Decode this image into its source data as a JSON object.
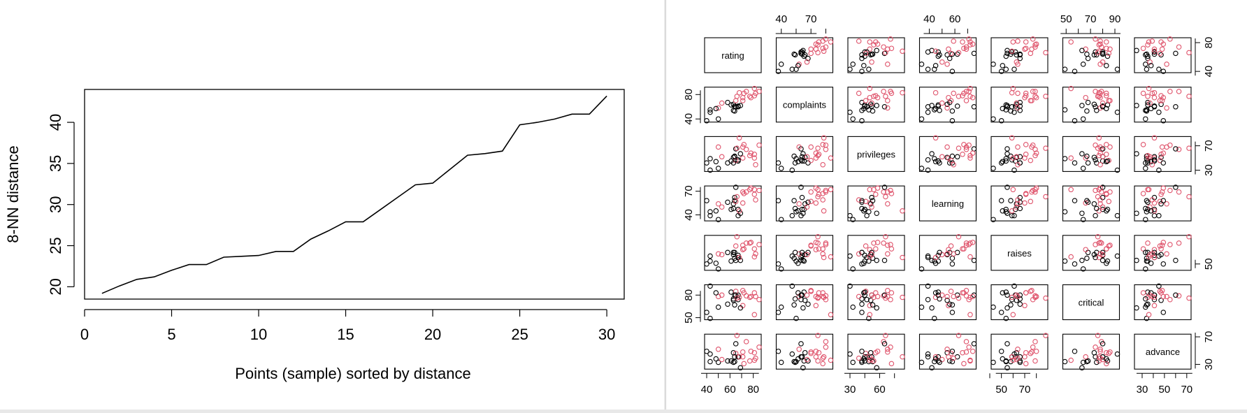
{
  "chart_data": [
    {
      "type": "line",
      "title": "",
      "xlabel": "Points (sample) sorted by distance",
      "ylabel": "8-NN distance",
      "xlim": [
        0,
        31
      ],
      "ylim": [
        18.5,
        44
      ],
      "xticks": [
        0,
        5,
        10,
        15,
        20,
        25,
        30
      ],
      "yticks": [
        20,
        25,
        30,
        35,
        40
      ],
      "grid": false,
      "x": [
        1,
        2,
        3,
        4,
        5,
        6,
        7,
        8,
        9,
        10,
        11,
        12,
        13,
        14,
        15,
        16,
        17,
        18,
        19,
        20,
        21,
        22,
        23,
        24,
        25,
        26,
        27,
        28,
        29,
        30
      ],
      "y": [
        19.2,
        20.1,
        20.9,
        21.2,
        22.0,
        22.7,
        22.7,
        23.6,
        23.7,
        23.8,
        24.3,
        24.3,
        25.8,
        26.8,
        27.9,
        27.9,
        29.4,
        30.9,
        32.4,
        32.6,
        34.3,
        36.0,
        36.2,
        36.5,
        39.7,
        40.0,
        40.4,
        41.0,
        41.0,
        43.2
      ]
    },
    {
      "type": "scatter",
      "subtype": "scatter-matrix",
      "variables": [
        "rating",
        "complaints",
        "privileges",
        "learning",
        "raises",
        "critical",
        "advance"
      ],
      "colors": {
        "cluster_a": "#000000",
        "cluster_b": "#df536b"
      },
      "ticks": {
        "top": [
          {
            "col": 1,
            "labels": [
              "40",
              "70"
            ]
          },
          {
            "col": 3,
            "labels": [
              "40",
              "60"
            ]
          },
          {
            "col": 5,
            "labels": [
              "50",
              "70",
              "90"
            ]
          }
        ],
        "bottom": [
          {
            "col": 0,
            "labels": [
              "40",
              "60",
              "80"
            ]
          },
          {
            "col": 2,
            "labels": [
              "30",
              "60"
            ]
          },
          {
            "col": 4,
            "labels": [
              "50",
              "70"
            ]
          },
          {
            "col": 6,
            "labels": [
              "30",
              "50",
              "70"
            ]
          }
        ],
        "left": [
          {
            "row": 1,
            "labels": [
              "40",
              "80"
            ]
          },
          {
            "row": 3,
            "labels": [
              "40",
              "70"
            ]
          },
          {
            "row": 5,
            "labels": [
              "50",
              "80"
            ]
          }
        ],
        "right": [
          {
            "row": 0,
            "labels": [
              "40",
              "80"
            ]
          },
          {
            "row": 2,
            "labels": [
              "30",
              "70"
            ]
          },
          {
            "row": 4,
            "labels": [
              "50"
            ]
          },
          {
            "row": 6,
            "labels": [
              "30",
              "70"
            ]
          }
        ]
      },
      "data": {
        "rating": [
          43,
          63,
          71,
          61,
          81,
          43,
          58,
          71,
          72,
          67,
          64,
          67,
          69,
          68,
          77,
          81,
          74,
          65,
          65,
          50,
          50,
          64,
          53,
          40,
          63,
          66,
          78,
          48,
          85,
          82
        ],
        "complaints": [
          51,
          64,
          70,
          63,
          78,
          55,
          67,
          75,
          82,
          61,
          53,
          60,
          62,
          83,
          77,
          90,
          85,
          60,
          70,
          58,
          40,
          61,
          66,
          37,
          54,
          77,
          75,
          57,
          85,
          82
        ],
        "privileges": [
          30,
          51,
          68,
          45,
          56,
          49,
          42,
          50,
          72,
          45,
          53,
          47,
          57,
          83,
          54,
          50,
          64,
          65,
          46,
          68,
          33,
          52,
          52,
          42,
          42,
          66,
          58,
          44,
          71,
          39
        ],
        "learning": [
          39,
          54,
          69,
          47,
          66,
          44,
          56,
          55,
          67,
          47,
          58,
          39,
          42,
          45,
          72,
          72,
          69,
          75,
          57,
          54,
          34,
          62,
          50,
          58,
          48,
          63,
          74,
          45,
          71,
          59
        ],
        "raises": [
          61,
          63,
          76,
          54,
          71,
          54,
          66,
          70,
          71,
          62,
          58,
          59,
          55,
          59,
          79,
          60,
          79,
          55,
          75,
          64,
          43,
          66,
          63,
          50,
          66,
          88,
          80,
          51,
          77,
          64
        ],
        "critical": [
          92,
          73,
          86,
          84,
          83,
          49,
          68,
          66,
          83,
          80,
          67,
          74,
          63,
          77,
          77,
          54,
          79,
          80,
          85,
          78,
          64,
          80,
          80,
          57,
          75,
          76,
          78,
          83,
          74,
          78
        ],
        "advance": [
          45,
          47,
          48,
          35,
          47,
          34,
          35,
          41,
          31,
          41,
          34,
          41,
          25,
          41,
          35,
          36,
          63,
          60,
          46,
          52,
          33,
          41,
          37,
          49,
          33,
          72,
          49,
          38,
          55,
          39
        ]
      },
      "groups": [
        0,
        0,
        1,
        0,
        1,
        0,
        0,
        1,
        1,
        0,
        0,
        0,
        0,
        1,
        1,
        1,
        1,
        0,
        1,
        1,
        0,
        0,
        1,
        0,
        0,
        1,
        1,
        0,
        1,
        1
      ]
    }
  ]
}
